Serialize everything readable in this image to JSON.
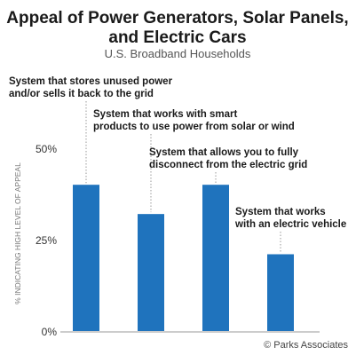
{
  "chart_data": {
    "type": "bar",
    "title": "Appeal of Power Generators, Solar Panels, and Electric Cars",
    "subtitle": "U.S. Broadband Households",
    "ylabel": "% INDICATING HIGH LEVEL OF APPEAL",
    "ylim": [
      0,
      50
    ],
    "yticks": [
      "0%",
      "25%",
      "50%"
    ],
    "grid": false,
    "bar_color": "#1f73bd",
    "categories": [
      "System that stores unused power and/or sells it back to the grid",
      "System that works with smart products to use power from solar or wind",
      "System that allows you to fully disconnect from the electric grid",
      "System that works with an electric vehicle"
    ],
    "annotations": [
      [
        "System that stores unused power",
        "and/or sells it back to the grid"
      ],
      [
        "System that works with smart",
        "products to use power from solar or wind"
      ],
      [
        "System that allows you to fully",
        "disconnect from the electric grid"
      ],
      [
        "System that works",
        "with an electric vehicle"
      ]
    ],
    "values": [
      40,
      32,
      40,
      21
    ],
    "credit": "© Parks Associates"
  }
}
